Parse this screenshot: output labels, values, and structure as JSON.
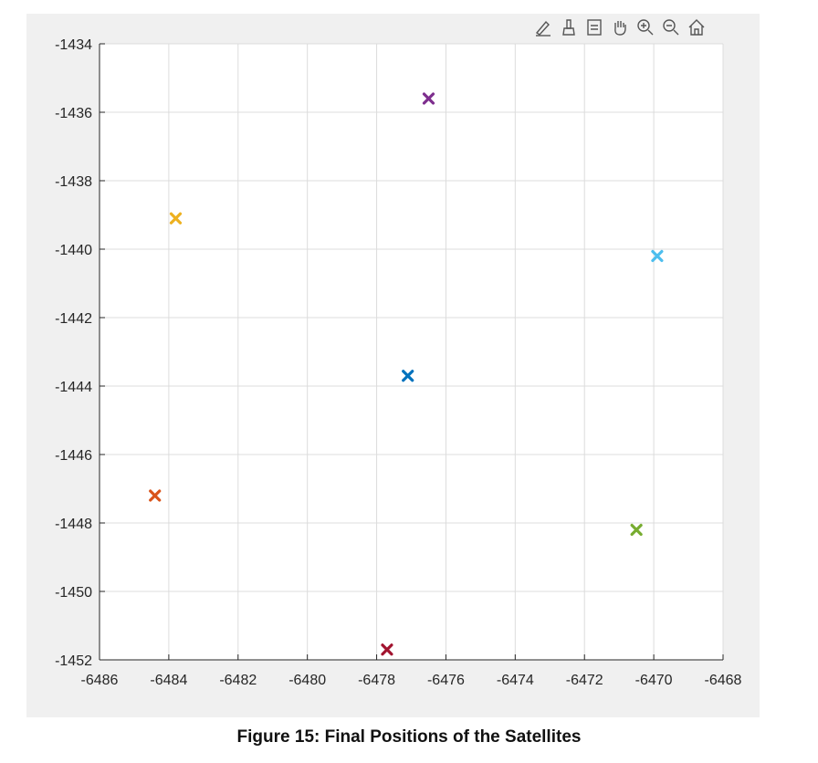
{
  "caption": "Figure 15: Final Positions of the Satellites",
  "toolbar": {
    "buttons": [
      {
        "name": "data-tips-button",
        "icon": "brush-pen-icon"
      },
      {
        "name": "brush-button",
        "icon": "brush-icon"
      },
      {
        "name": "export-button",
        "icon": "export-icon"
      },
      {
        "name": "pan-button",
        "icon": "hand-icon"
      },
      {
        "name": "zoom-in-button",
        "icon": "zoom-in-icon"
      },
      {
        "name": "zoom-out-button",
        "icon": "zoom-out-icon"
      },
      {
        "name": "home-button",
        "icon": "home-icon"
      }
    ]
  },
  "chart_data": {
    "type": "scatter",
    "title": "",
    "xlabel": "",
    "ylabel": "",
    "xlim": [
      -6486,
      -6468
    ],
    "ylim": [
      -1452,
      -1434
    ],
    "xticks": [
      -6486,
      -6484,
      -6482,
      -6480,
      -6478,
      -6476,
      -6474,
      -6472,
      -6470,
      -6468
    ],
    "yticks": [
      -1434,
      -1436,
      -1438,
      -1440,
      -1442,
      -1444,
      -1446,
      -1448,
      -1450,
      -1452
    ],
    "grid": true,
    "marker": "x",
    "points": [
      {
        "x": -6477.1,
        "y": -1443.7,
        "color": "#0072bd"
      },
      {
        "x": -6484.4,
        "y": -1447.2,
        "color": "#d95319"
      },
      {
        "x": -6483.8,
        "y": -1439.1,
        "color": "#edb120"
      },
      {
        "x": -6476.5,
        "y": -1435.6,
        "color": "#7e2f8e"
      },
      {
        "x": -6470.5,
        "y": -1448.2,
        "color": "#77ac30"
      },
      {
        "x": -6469.9,
        "y": -1440.2,
        "color": "#4dbeee"
      },
      {
        "x": -6477.7,
        "y": -1451.7,
        "color": "#a2142f"
      }
    ]
  }
}
